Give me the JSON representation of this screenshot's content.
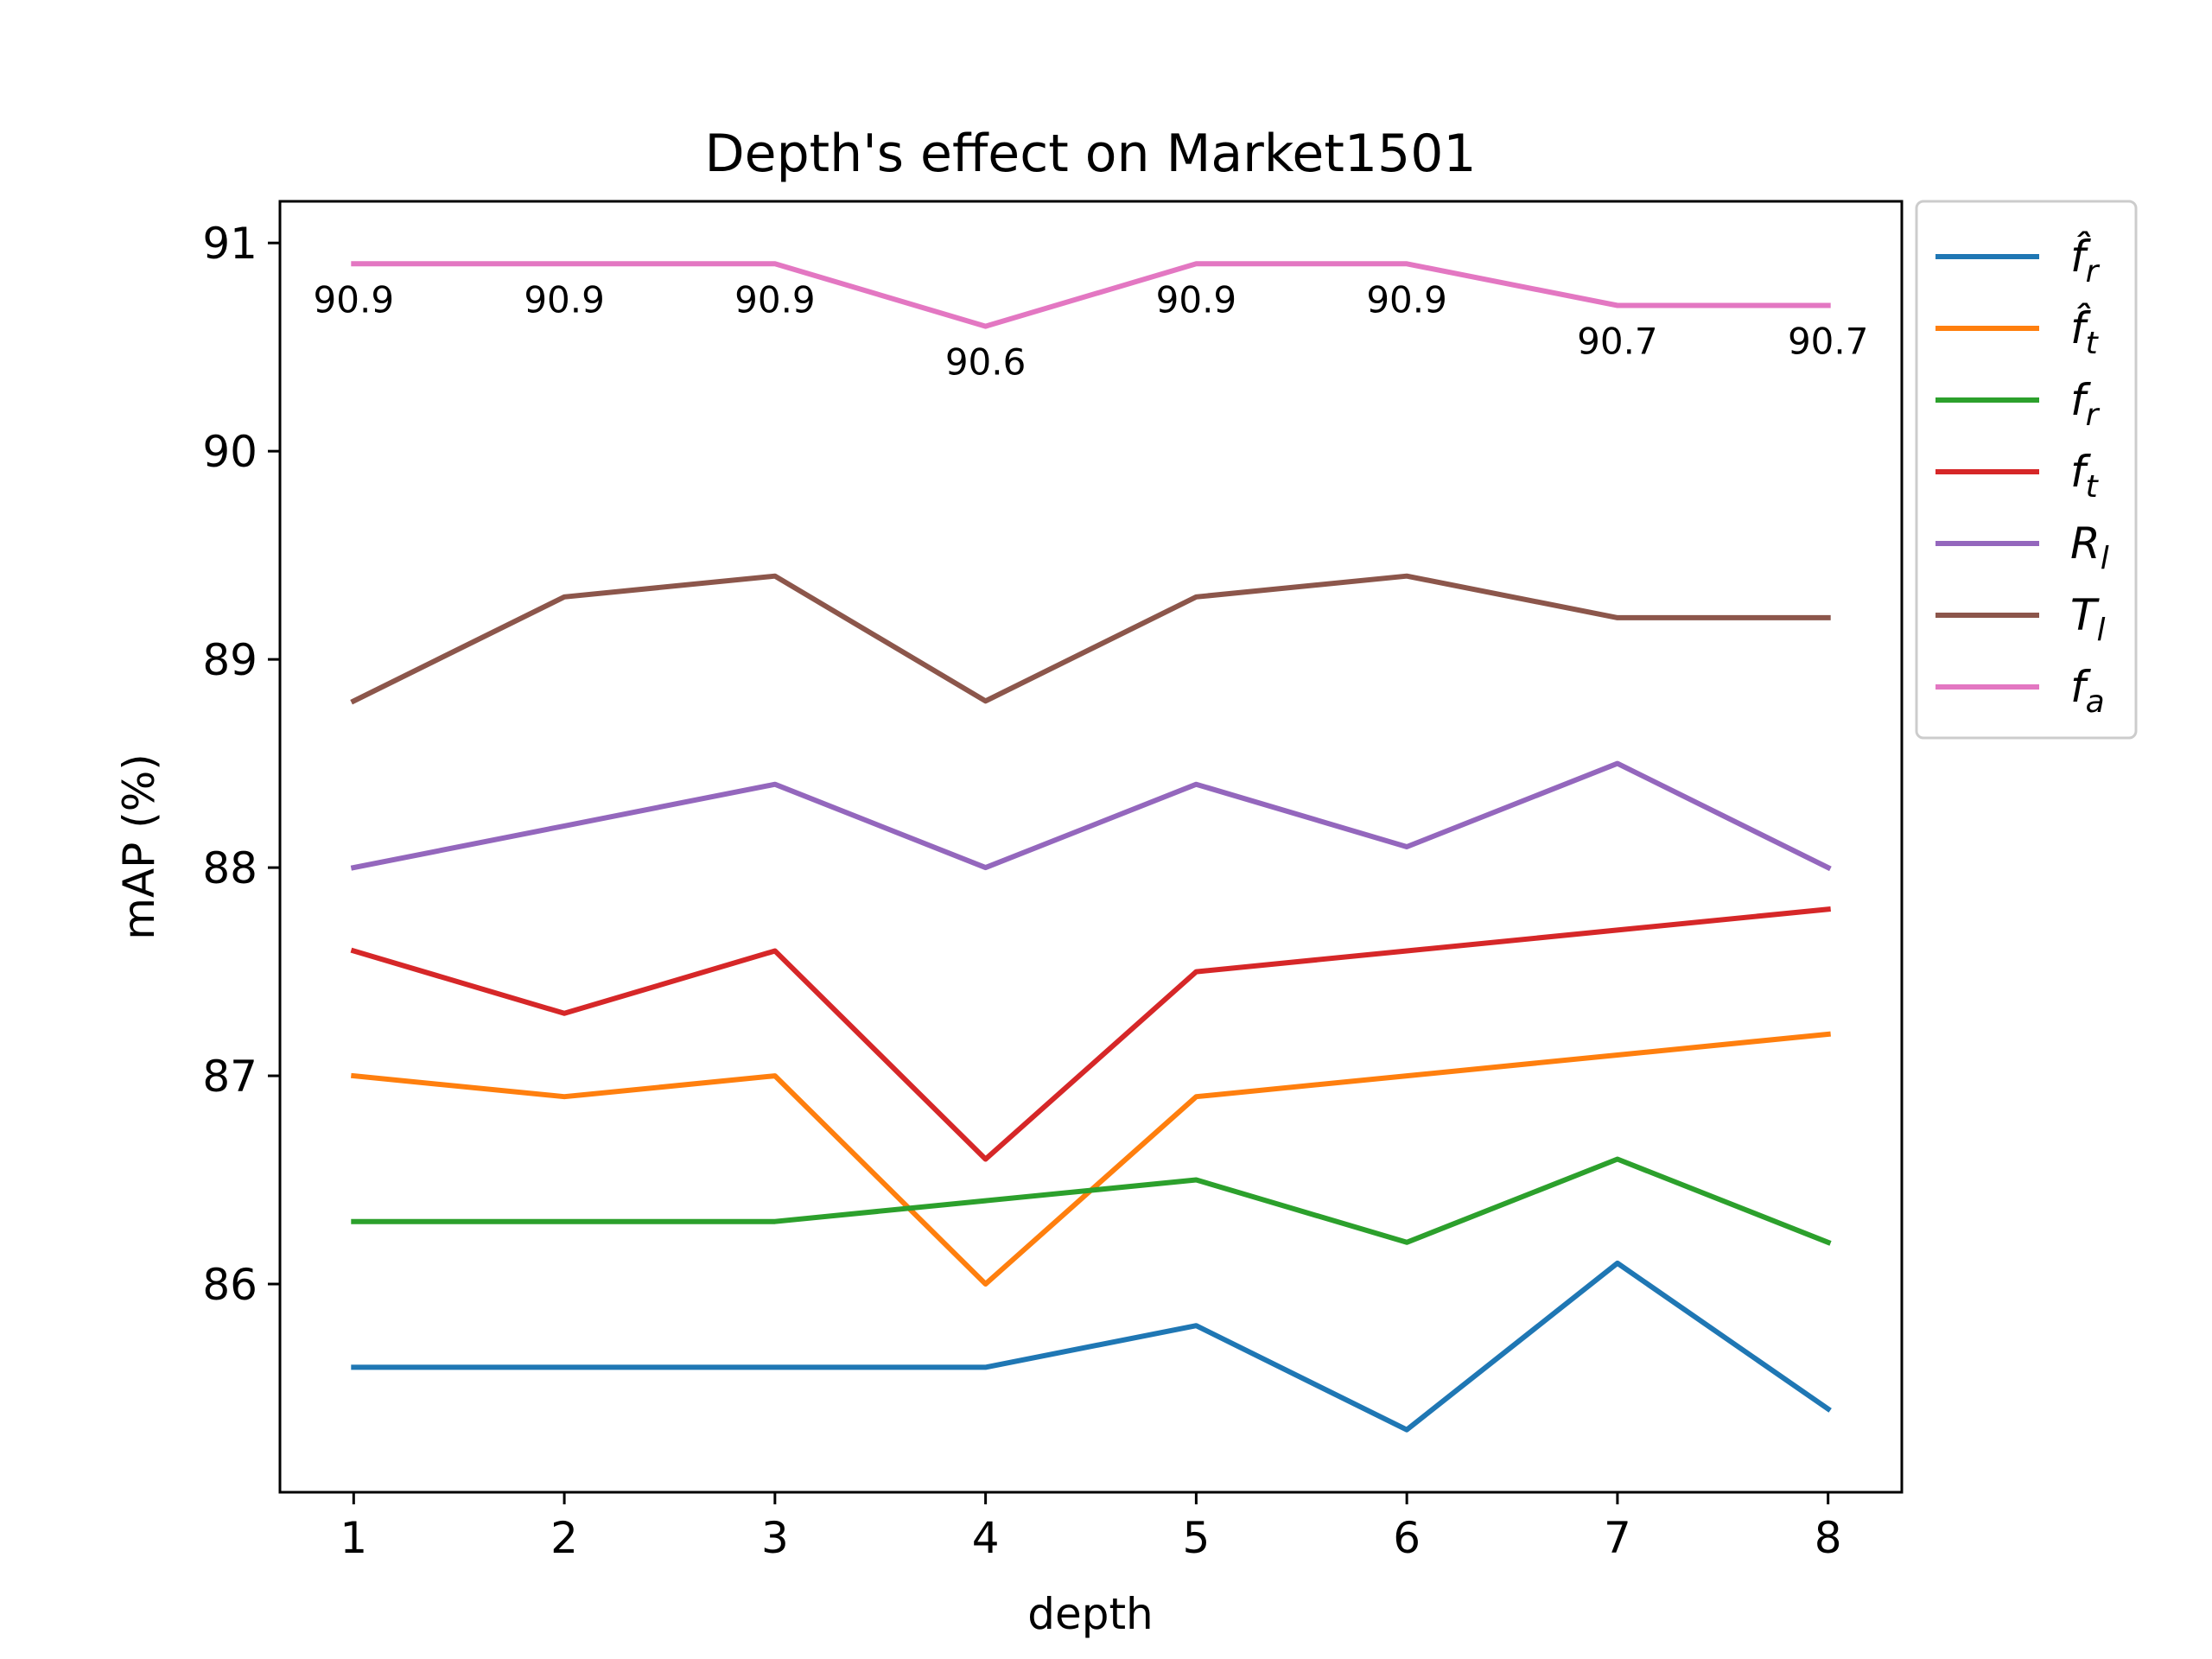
{
  "chart_data": {
    "type": "line",
    "title": "Depth's effect on Market1501",
    "xlabel": "depth",
    "ylabel": "mAP (%)",
    "x": [
      1,
      2,
      3,
      4,
      5,
      6,
      7,
      8
    ],
    "xlim": [
      0.65,
      8.35
    ],
    "ylim": [
      85.0,
      91.2
    ],
    "xticks": [
      "1",
      "2",
      "3",
      "4",
      "5",
      "6",
      "7",
      "8"
    ],
    "yticks": [
      86,
      87,
      88,
      89,
      90,
      91
    ],
    "ytick_labels": [
      "86",
      "87",
      "88",
      "89",
      "90",
      "91"
    ],
    "grid": false,
    "legend_position": "outside-upper-right",
    "series": [
      {
        "name": "f̂_r",
        "base": "f̂",
        "sub": "r",
        "color": "#1f77b4",
        "values": [
          85.6,
          85.6,
          85.6,
          85.6,
          85.8,
          85.3,
          86.1,
          85.4
        ]
      },
      {
        "name": "f̂_t",
        "base": "f̂",
        "sub": "t",
        "color": "#ff7f0e",
        "values": [
          87.0,
          86.9,
          87.0,
          86.0,
          86.9,
          87.0,
          87.1,
          87.2
        ]
      },
      {
        "name": "f_r",
        "base": "f",
        "sub": "r",
        "color": "#2ca02c",
        "values": [
          86.3,
          86.3,
          86.3,
          86.4,
          86.5,
          86.2,
          86.6,
          86.2
        ]
      },
      {
        "name": "f_t",
        "base": "f",
        "sub": "t",
        "color": "#d62728",
        "values": [
          87.6,
          87.3,
          87.6,
          86.6,
          87.5,
          87.6,
          87.7,
          87.8
        ]
      },
      {
        "name": "R_l",
        "base": "R",
        "sub": "l",
        "color": "#9467bd",
        "values": [
          88.0,
          88.2,
          88.4,
          88.0,
          88.4,
          88.1,
          88.5,
          88.0
        ]
      },
      {
        "name": "T_l",
        "base": "T",
        "sub": "l",
        "color": "#8c564b",
        "values": [
          88.8,
          89.3,
          89.4,
          88.8,
          89.3,
          89.4,
          89.2,
          89.2
        ]
      },
      {
        "name": "f_a",
        "base": "f",
        "sub": "a",
        "color": "#e377c2",
        "values": [
          90.9,
          90.9,
          90.9,
          90.6,
          90.9,
          90.9,
          90.7,
          90.7
        ]
      }
    ],
    "annotations": {
      "series_index": 6,
      "labels": [
        "90.9",
        "90.9",
        "90.9",
        "90.6",
        "90.9",
        "90.9",
        "90.7",
        "90.7"
      ]
    }
  }
}
